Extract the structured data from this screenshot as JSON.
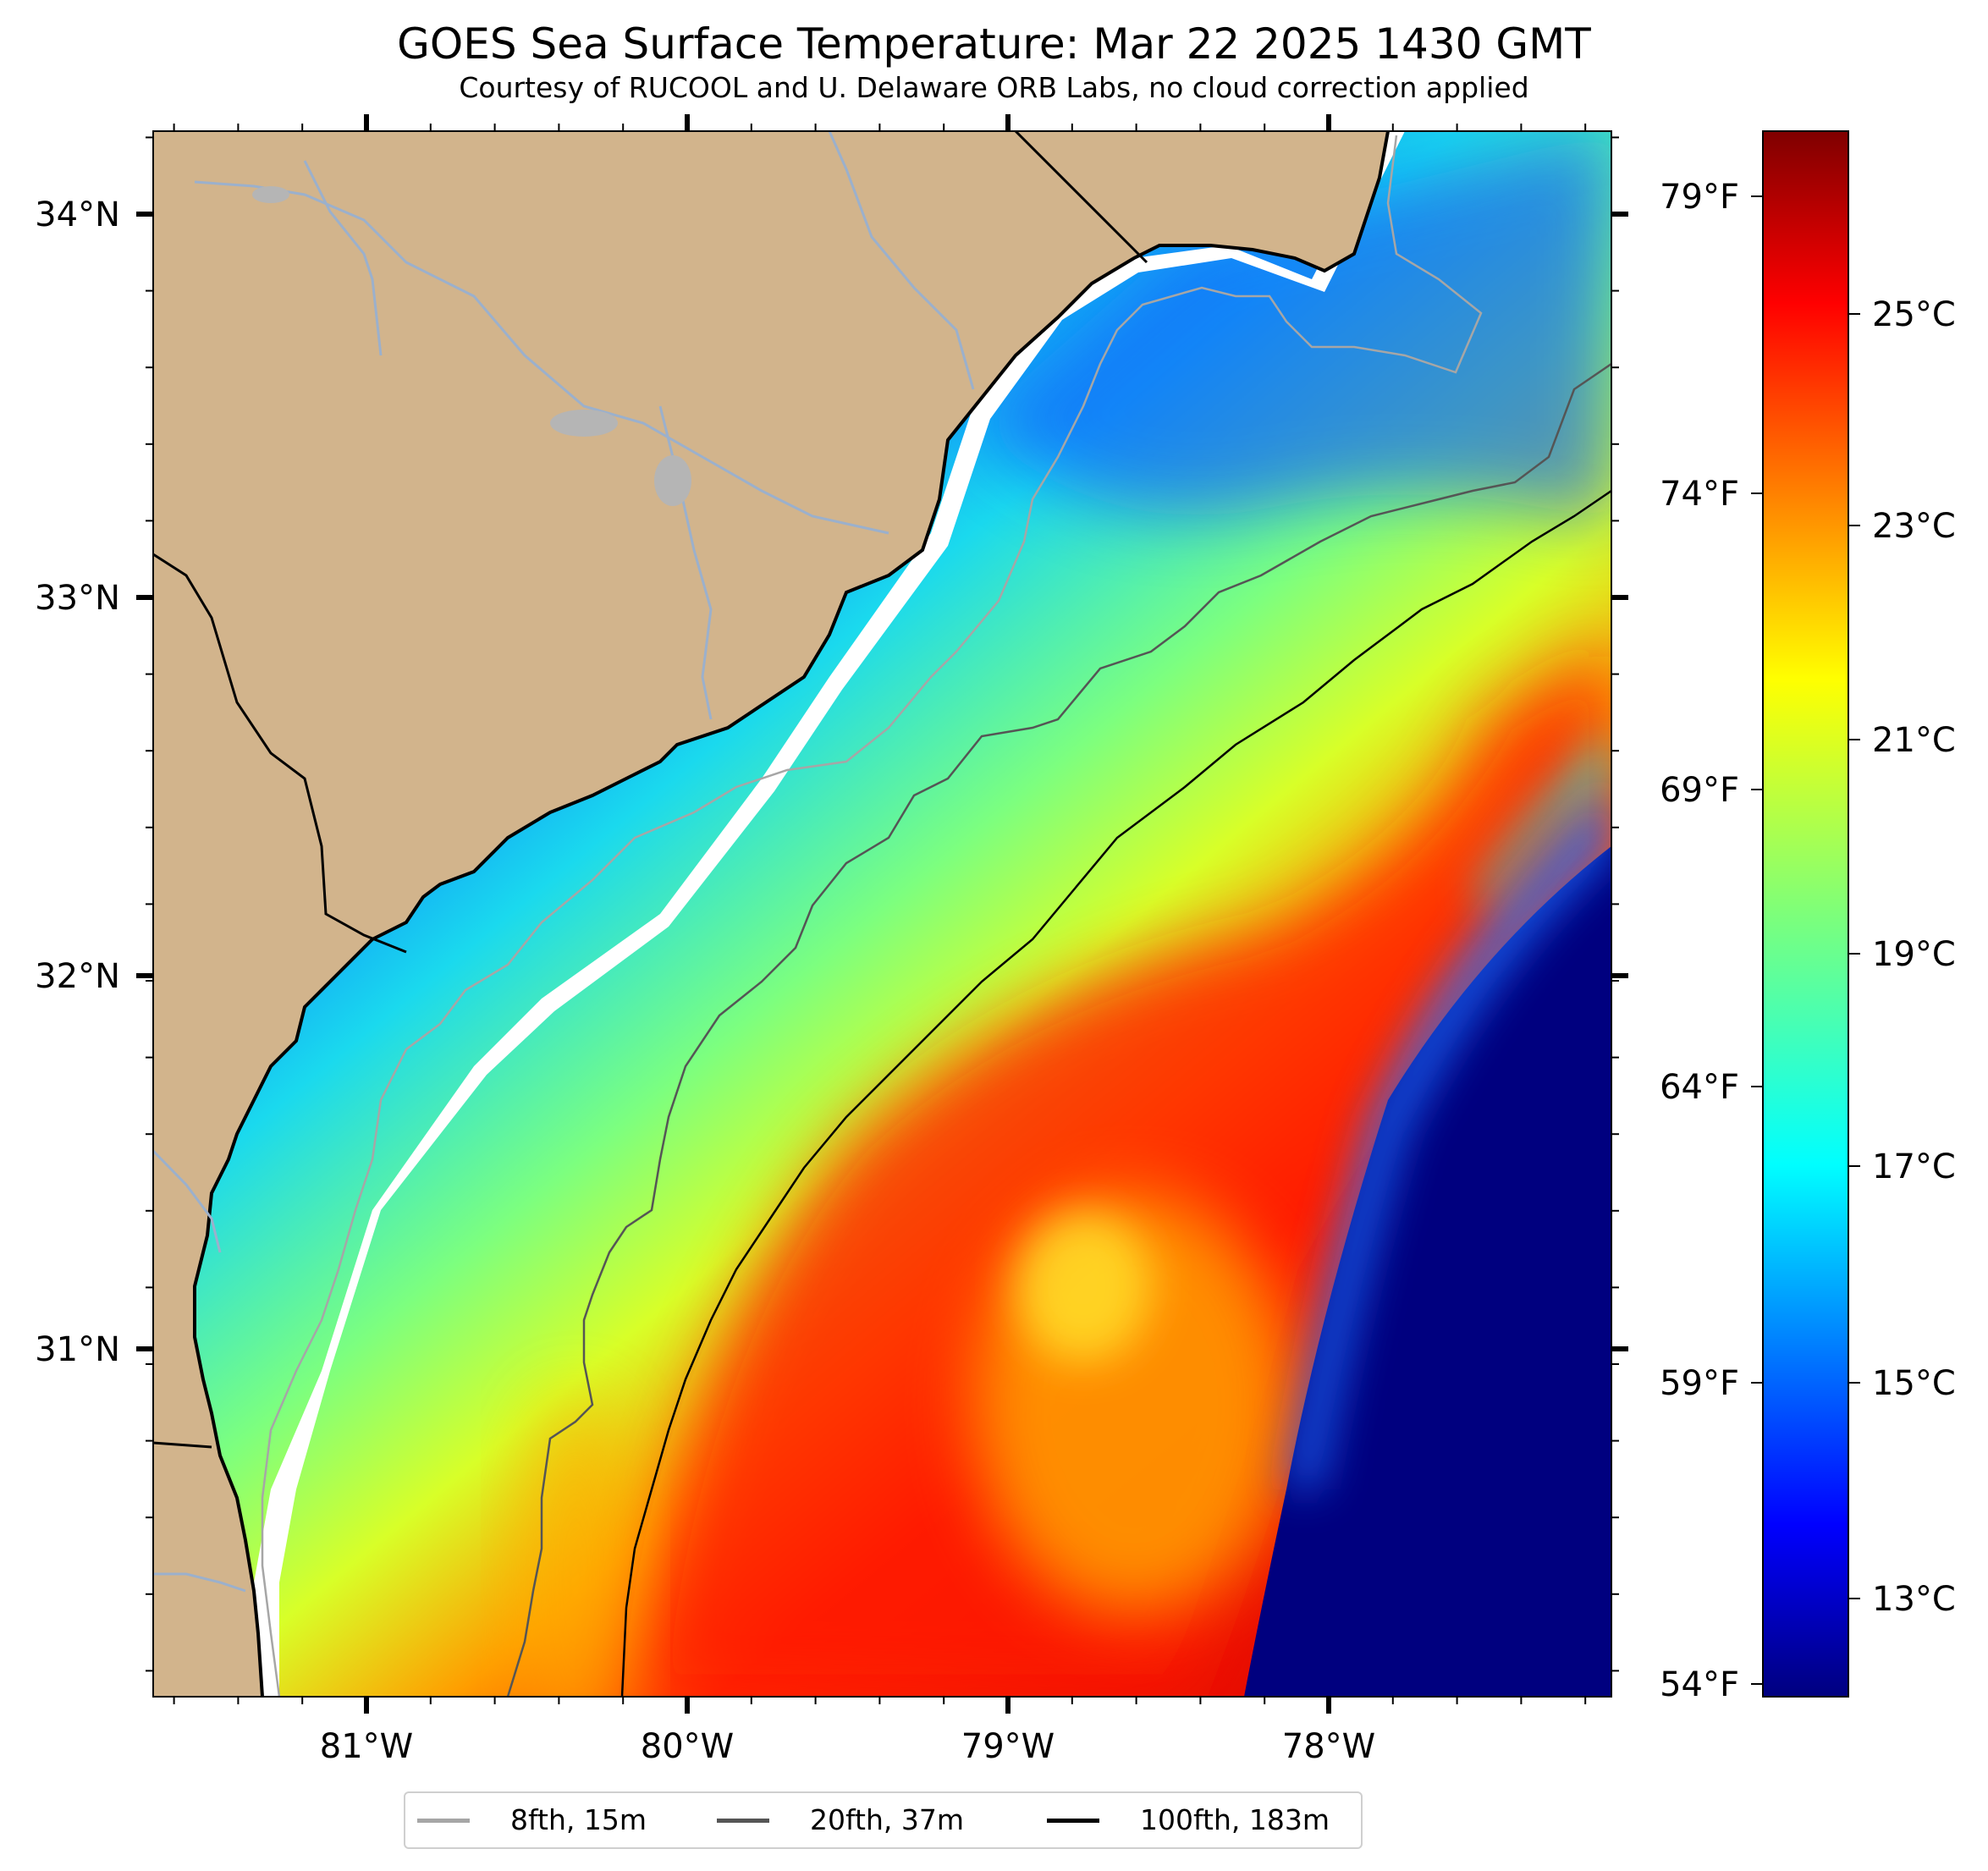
{
  "title": "GOES Sea Surface Temperature: Mar 22 2025 1430 GMT",
  "subtitle": "Courtesy of RUCOOL and U. Delaware ORB Labs, no cloud correction applied",
  "map": {
    "lon_labels": [
      "81°W",
      "80°W",
      "79°W",
      "78°W"
    ],
    "lat_labels": [
      "34°N",
      "33°N",
      "32°N",
      "31°N"
    ]
  },
  "colorbar": {
    "celsius_labels": [
      "25°C",
      "23°C",
      "21°C",
      "19°C",
      "17°C",
      "15°C",
      "13°C"
    ],
    "fahrenheit_labels": [
      "79°F",
      "74°F",
      "69°F",
      "64°F",
      "59°F",
      "54°F"
    ],
    "colormap": "jet"
  },
  "legend": {
    "items": [
      {
        "label": "8fth, 15m",
        "color": "#a6a6a6"
      },
      {
        "label": "20fth, 37m",
        "color": "#555555"
      },
      {
        "label": "100fth, 183m",
        "color": "#000000"
      }
    ]
  },
  "colors": {
    "land": "#d2b48c",
    "coast_gap": "#ffffff",
    "rivers": "#9bb0cc"
  }
}
